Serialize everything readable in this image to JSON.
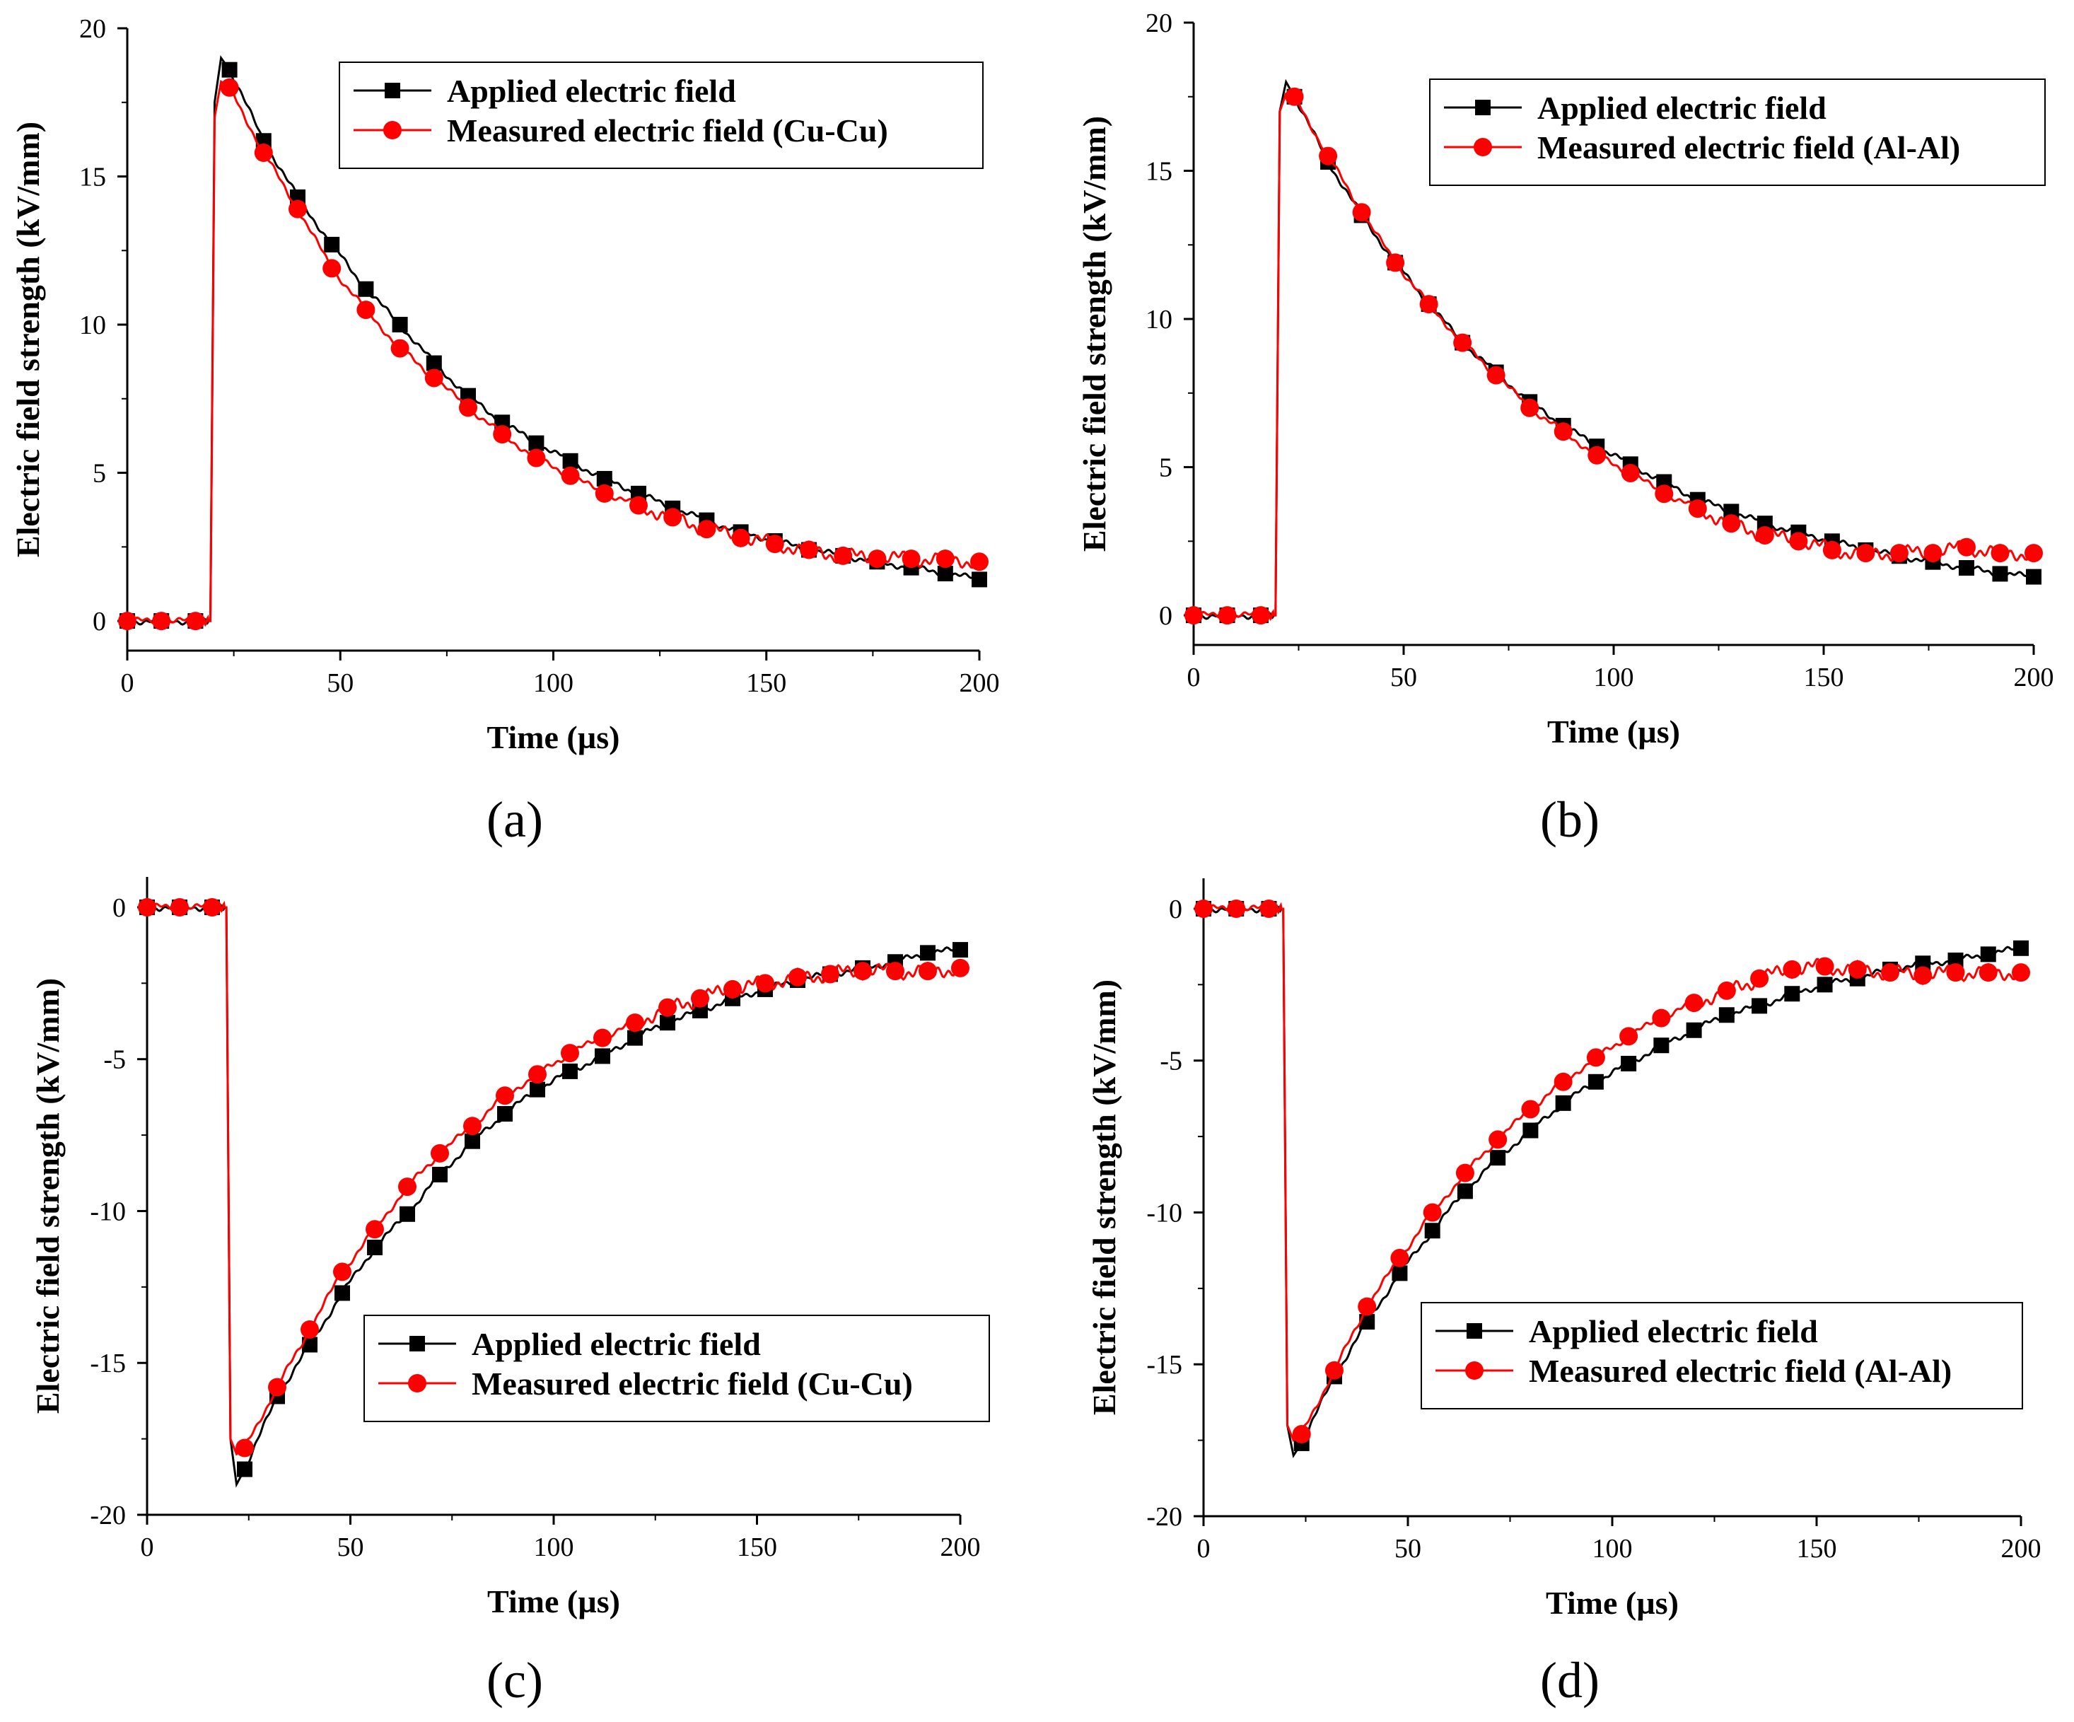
{
  "figure": {
    "labels": [
      "(a)",
      "(b)",
      "(c)",
      "(d)"
    ]
  },
  "colors": {
    "applied": "#000000",
    "measured": "#ff0000"
  },
  "chart_data": [
    {
      "type": "line",
      "panel": "(a)",
      "xlabel": "Time (µs)",
      "ylabel": "Electric field strength (kV/mm)",
      "xlim": [
        0,
        200
      ],
      "ylim": [
        -1,
        20
      ],
      "xticks": [
        0,
        50,
        100,
        150,
        200
      ],
      "yticks": [
        0,
        5,
        10,
        15,
        20
      ],
      "legend_position": "top-right",
      "series": [
        {
          "name": "Applied electric field",
          "marker": "square",
          "color": "#000000",
          "x": [
            0,
            8,
            16,
            19.5,
            20.5,
            22,
            24,
            32,
            40,
            48,
            56,
            64,
            72,
            80,
            88,
            96,
            104,
            112,
            120,
            128,
            136,
            144,
            152,
            160,
            168,
            176,
            184,
            192,
            200
          ],
          "y": [
            0,
            0,
            0,
            0,
            17.5,
            19.0,
            18.6,
            16.2,
            14.3,
            12.7,
            11.2,
            10.0,
            8.7,
            7.6,
            6.7,
            6.0,
            5.4,
            4.8,
            4.3,
            3.8,
            3.4,
            3.0,
            2.7,
            2.4,
            2.2,
            2.0,
            1.8,
            1.6,
            1.4
          ]
        },
        {
          "name": "Measured electric field (Cu-Cu)",
          "marker": "circle",
          "color": "#ff0000",
          "x": [
            0,
            8,
            16,
            19.5,
            20.5,
            22,
            24,
            32,
            40,
            48,
            56,
            64,
            72,
            80,
            88,
            96,
            104,
            112,
            120,
            128,
            136,
            144,
            152,
            160,
            168,
            176,
            184,
            192,
            200
          ],
          "y": [
            0,
            0,
            0,
            0,
            17.0,
            18.2,
            18.0,
            15.8,
            13.9,
            11.9,
            10.5,
            9.2,
            8.2,
            7.2,
            6.3,
            5.5,
            4.9,
            4.3,
            3.9,
            3.5,
            3.1,
            2.8,
            2.6,
            2.4,
            2.2,
            2.1,
            2.1,
            2.1,
            2.0
          ]
        }
      ]
    },
    {
      "type": "line",
      "panel": "(b)",
      "xlabel": "Time (µs)",
      "ylabel": "Electric field strength (kV/mm)",
      "xlim": [
        0,
        200
      ],
      "ylim": [
        -1,
        20
      ],
      "xticks": [
        0,
        50,
        100,
        150,
        200
      ],
      "yticks": [
        0,
        5,
        10,
        15,
        20
      ],
      "legend_position": "top-right",
      "series": [
        {
          "name": "Applied electric field",
          "marker": "square",
          "color": "#000000",
          "x": [
            0,
            8,
            16,
            19.5,
            20.5,
            22,
            24,
            32,
            40,
            48,
            56,
            64,
            72,
            80,
            88,
            96,
            104,
            112,
            120,
            128,
            136,
            144,
            152,
            160,
            168,
            176,
            184,
            192,
            200
          ],
          "y": [
            0,
            0,
            0,
            0,
            17.0,
            18.0,
            17.5,
            15.3,
            13.5,
            11.9,
            10.5,
            9.2,
            8.2,
            7.2,
            6.4,
            5.7,
            5.1,
            4.5,
            3.9,
            3.5,
            3.1,
            2.8,
            2.5,
            2.2,
            2.0,
            1.8,
            1.6,
            1.4,
            1.3
          ]
        },
        {
          "name": "Measured electric field (Al-Al)",
          "marker": "circle",
          "color": "#ff0000",
          "x": [
            0,
            8,
            16,
            19.5,
            20.5,
            22,
            24,
            32,
            40,
            48,
            56,
            64,
            72,
            80,
            88,
            96,
            104,
            112,
            120,
            128,
            136,
            144,
            152,
            160,
            168,
            176,
            184,
            192,
            200
          ],
          "y": [
            0,
            0,
            0,
            0,
            17.0,
            17.6,
            17.5,
            15.5,
            13.6,
            11.9,
            10.5,
            9.2,
            8.1,
            7.0,
            6.2,
            5.4,
            4.8,
            4.1,
            3.6,
            3.1,
            2.7,
            2.5,
            2.2,
            2.1,
            2.1,
            2.1,
            2.3,
            2.1,
            2.1
          ]
        }
      ]
    },
    {
      "type": "line",
      "panel": "(c)",
      "xlabel": "Time (µs)",
      "ylabel": "Electric field strength (kV/mm)",
      "xlim": [
        0,
        200
      ],
      "ylim": [
        -20,
        1
      ],
      "xticks": [
        0,
        50,
        100,
        150,
        200
      ],
      "yticks": [
        -20,
        -15,
        -10,
        -5,
        0
      ],
      "legend_position": "bottom-right",
      "series": [
        {
          "name": "Applied electric field",
          "marker": "square",
          "color": "#000000",
          "x": [
            0,
            8,
            16,
            19.5,
            20.5,
            22,
            24,
            32,
            40,
            48,
            56,
            64,
            72,
            80,
            88,
            96,
            104,
            112,
            120,
            128,
            136,
            144,
            152,
            160,
            168,
            176,
            184,
            192,
            200
          ],
          "y": [
            0,
            0,
            0,
            0,
            -17.5,
            -19.0,
            -18.5,
            -16.1,
            -14.4,
            -12.7,
            -11.2,
            -10.1,
            -8.8,
            -7.7,
            -6.8,
            -6.0,
            -5.4,
            -4.9,
            -4.3,
            -3.8,
            -3.4,
            -3.0,
            -2.7,
            -2.4,
            -2.2,
            -2.0,
            -1.8,
            -1.5,
            -1.4
          ]
        },
        {
          "name": "Measured electric field (Cu-Cu)",
          "marker": "circle",
          "color": "#ff0000",
          "x": [
            0,
            8,
            16,
            19.5,
            20.5,
            22,
            24,
            32,
            40,
            48,
            56,
            64,
            72,
            80,
            88,
            96,
            104,
            112,
            120,
            128,
            136,
            144,
            152,
            160,
            168,
            176,
            184,
            192,
            200
          ],
          "y": [
            0,
            0,
            0,
            0,
            -17.5,
            -18.0,
            -17.8,
            -15.8,
            -13.9,
            -12.0,
            -10.6,
            -9.2,
            -8.1,
            -7.2,
            -6.2,
            -5.5,
            -4.8,
            -4.3,
            -3.8,
            -3.3,
            -3.0,
            -2.7,
            -2.5,
            -2.3,
            -2.2,
            -2.1,
            -2.1,
            -2.1,
            -2.0
          ]
        }
      ]
    },
    {
      "type": "line",
      "panel": "(d)",
      "xlabel": "Time (µs)",
      "ylabel": "Electric field strength (kV/mm)",
      "xlim": [
        0,
        200
      ],
      "ylim": [
        -20,
        1
      ],
      "xticks": [
        0,
        50,
        100,
        150,
        200
      ],
      "yticks": [
        -20,
        -15,
        -10,
        -5,
        0
      ],
      "legend_position": "bottom-right",
      "series": [
        {
          "name": "Applied electric field",
          "marker": "square",
          "color": "#000000",
          "x": [
            0,
            8,
            16,
            19.5,
            20.5,
            22,
            24,
            32,
            40,
            48,
            56,
            64,
            72,
            80,
            88,
            96,
            104,
            112,
            120,
            128,
            136,
            144,
            152,
            160,
            168,
            176,
            184,
            192,
            200
          ],
          "y": [
            0,
            0,
            0,
            0,
            -17.0,
            -18.0,
            -17.6,
            -15.4,
            -13.6,
            -12.0,
            -10.6,
            -9.3,
            -8.2,
            -7.3,
            -6.4,
            -5.7,
            -5.1,
            -4.5,
            -4.0,
            -3.5,
            -3.2,
            -2.8,
            -2.5,
            -2.3,
            -2.0,
            -1.8,
            -1.7,
            -1.5,
            -1.3
          ]
        },
        {
          "name": "Measured electric field (Al-Al)",
          "marker": "circle",
          "color": "#ff0000",
          "x": [
            0,
            8,
            16,
            19.5,
            20.5,
            22,
            24,
            32,
            40,
            48,
            56,
            64,
            72,
            80,
            88,
            96,
            104,
            112,
            120,
            128,
            136,
            144,
            152,
            160,
            168,
            176,
            184,
            192,
            200
          ],
          "y": [
            0,
            0,
            0,
            0,
            -17.0,
            -17.5,
            -17.3,
            -15.2,
            -13.1,
            -11.5,
            -10.0,
            -8.7,
            -7.6,
            -6.6,
            -5.7,
            -4.9,
            -4.2,
            -3.6,
            -3.1,
            -2.7,
            -2.3,
            -2.0,
            -1.9,
            -2.0,
            -2.1,
            -2.2,
            -2.1,
            -2.1,
            -2.1
          ]
        }
      ]
    }
  ]
}
